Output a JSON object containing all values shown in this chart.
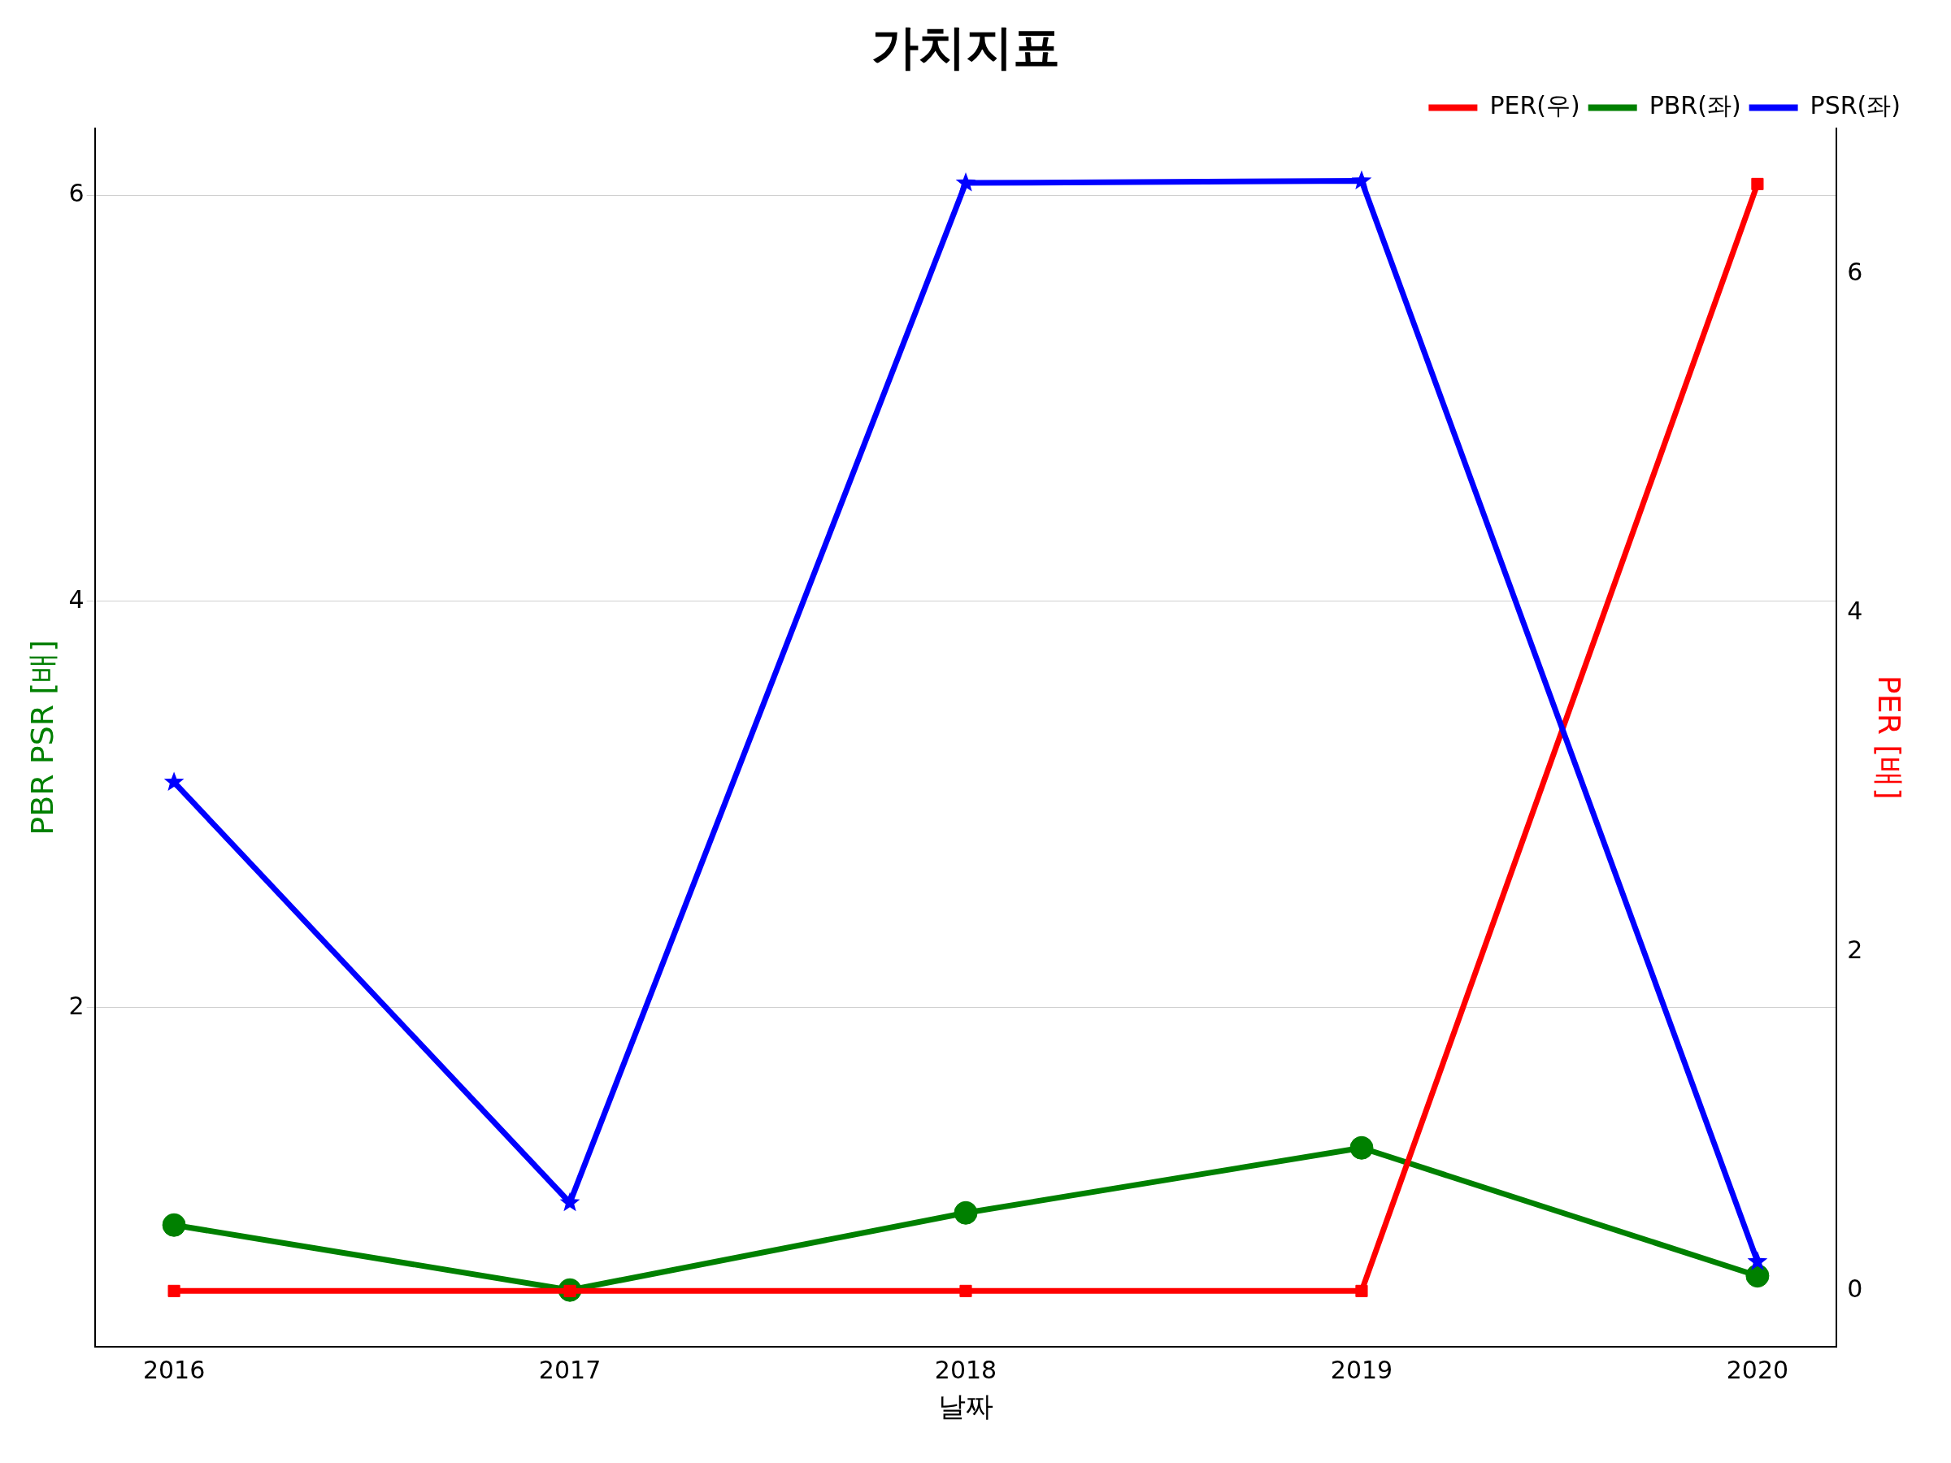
{
  "chart_data": {
    "type": "line",
    "title": "가치지표",
    "xlabel": "날짜",
    "ylabel": "PBR PSR [배]",
    "y2label": "PER [배]",
    "x": [
      2016,
      2017,
      2018,
      2019,
      2020
    ],
    "xlim": [
      2015.8,
      2020.2
    ],
    "xticks": [
      2016,
      2017,
      2018,
      2019,
      2020
    ],
    "ylim": [
      0.33,
      6.33
    ],
    "yticks": [
      2,
      4,
      6
    ],
    "y2lim": [
      -0.33,
      6.86
    ],
    "y2ticks": [
      0,
      2,
      4,
      6
    ],
    "grid": "y",
    "legend": "top right",
    "line_style": "solid",
    "series": [
      {
        "name": "PER(우)",
        "color": "#ff0000",
        "axis": "y2",
        "marker": "square",
        "values": [
          0,
          0,
          0,
          0,
          6.53
        ]
      },
      {
        "name": "PBR(좌)",
        "color": "#008000",
        "marker": "circle",
        "values": [
          0.93,
          0.61,
          0.99,
          1.31,
          0.68
        ]
      },
      {
        "name": "PSR(좌)",
        "color": "#0000ff",
        "marker": "star",
        "values": [
          3.11,
          1.04,
          6.06,
          6.07,
          0.75
        ]
      }
    ]
  }
}
